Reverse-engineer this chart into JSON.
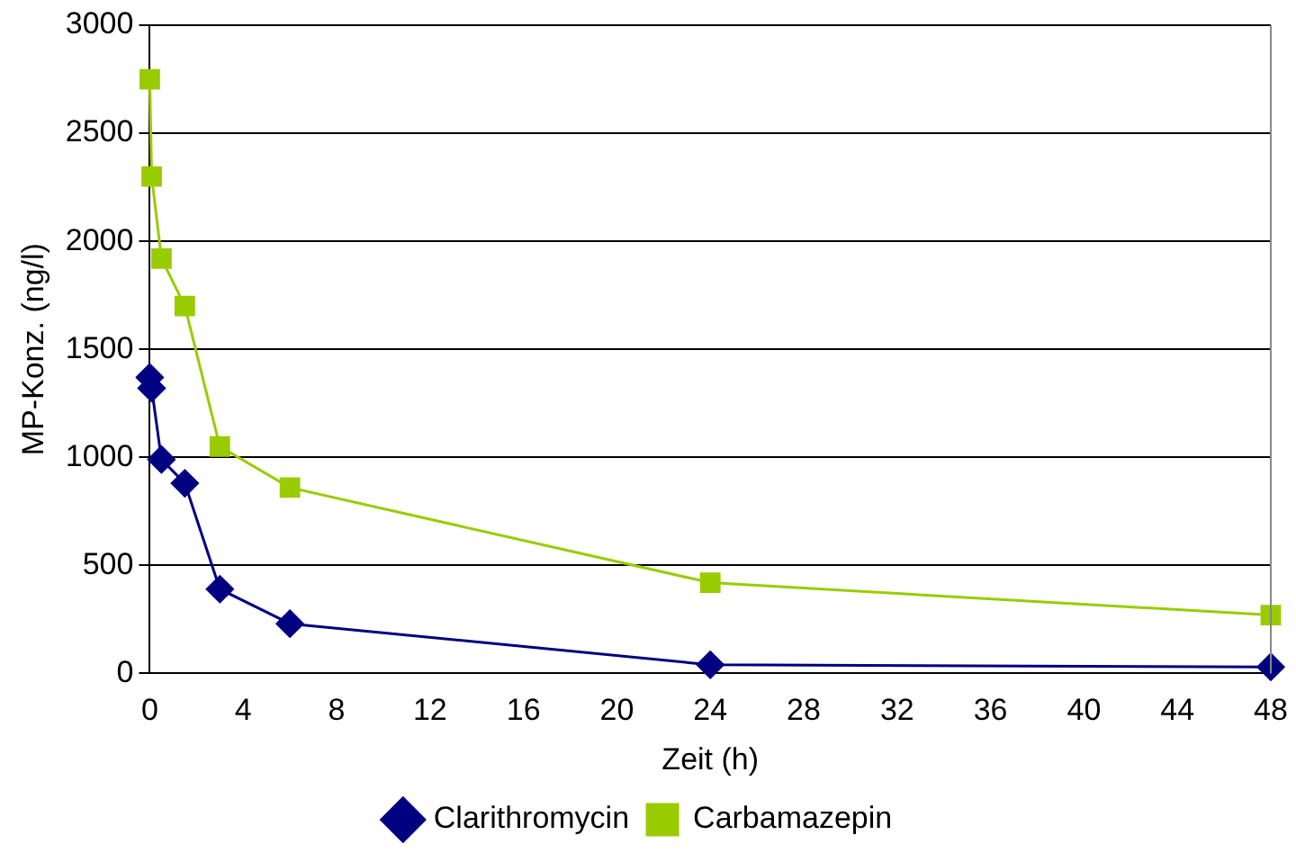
{
  "chart_data": {
    "type": "line",
    "xlabel": "Zeit (h)",
    "ylabel": "MP-Konz. (ng/l)",
    "xlim": [
      0,
      48
    ],
    "xticks": [
      0,
      4,
      8,
      12,
      16,
      20,
      24,
      28,
      32,
      36,
      40,
      44,
      48
    ],
    "ylim": [
      0,
      3000
    ],
    "yticks": [
      0,
      500,
      1000,
      1500,
      2000,
      2500,
      3000
    ],
    "grid": "y",
    "legend": "bottom",
    "series": [
      {
        "name": "Clarithromycin",
        "color": "#000080",
        "marker": "diamond",
        "x": [
          0,
          0.08,
          0.5,
          1.5,
          3,
          6,
          24,
          48
        ],
        "values": [
          1370,
          1320,
          990,
          880,
          390,
          230,
          40,
          30
        ]
      },
      {
        "name": "Carbamazepin",
        "color": "#99cc00",
        "marker": "square",
        "x": [
          0,
          0.08,
          0.5,
          1.5,
          3,
          6,
          24,
          48
        ],
        "values": [
          2750,
          2300,
          1920,
          1700,
          1050,
          860,
          420,
          270
        ]
      }
    ]
  }
}
